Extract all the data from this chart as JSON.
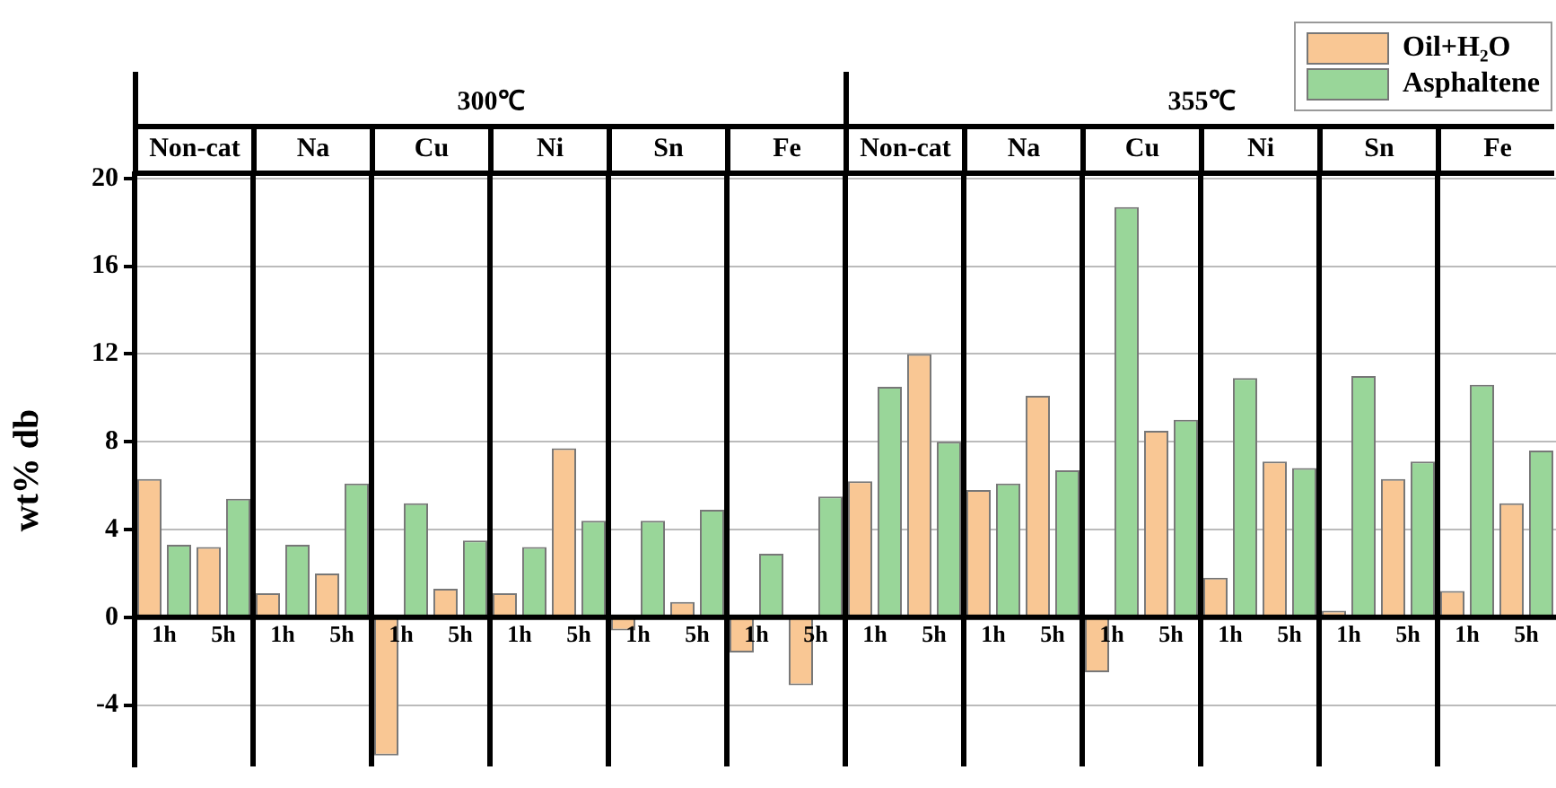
{
  "chart_data": {
    "type": "bar",
    "ylabel": "wt% db",
    "categories": [
      "1h",
      "5h",
      "1h",
      "5h",
      "1h",
      "5h",
      "1h",
      "5h",
      "1h",
      "5h",
      "1h",
      "5h",
      "1h",
      "5h",
      "1h",
      "5h",
      "1h",
      "5h",
      "1h",
      "5h",
      "1h",
      "5h",
      "1h",
      "5h"
    ],
    "series": [
      {
        "name": "Oil+H₂O",
        "color": "#f9c794",
        "values": [
          6.3,
          3.2,
          1.1,
          2.0,
          -6.3,
          1.3,
          1.1,
          7.7,
          -0.6,
          0.7,
          -1.6,
          -3.1,
          6.2,
          12.0,
          5.8,
          10.1,
          -2.5,
          8.5,
          1.8,
          7.1,
          0.3,
          6.3,
          1.2,
          5.2
        ]
      },
      {
        "name": "Asphaltene",
        "color": "#99d699",
        "values": [
          3.3,
          5.4,
          3.3,
          6.1,
          5.2,
          3.5,
          3.2,
          4.4,
          4.4,
          4.9,
          2.9,
          5.5,
          10.5,
          8.0,
          6.1,
          6.7,
          18.7,
          9.0,
          10.9,
          6.8,
          11.0,
          7.1,
          10.6,
          7.6
        ]
      }
    ],
    "ylim": [
      -6.8,
      20.2
    ],
    "yticks": [
      -4,
      0,
      4,
      8,
      12,
      16,
      20
    ],
    "grid": "y",
    "legend": "top right",
    "annotations": [
      "300℃",
      "355℃",
      "Non-cat",
      "Na",
      "Cu",
      "Ni",
      "Sn",
      "Fe",
      "Non-cat",
      "Na",
      "Cu",
      "Ni",
      "Sn",
      "Fe"
    ]
  }
}
